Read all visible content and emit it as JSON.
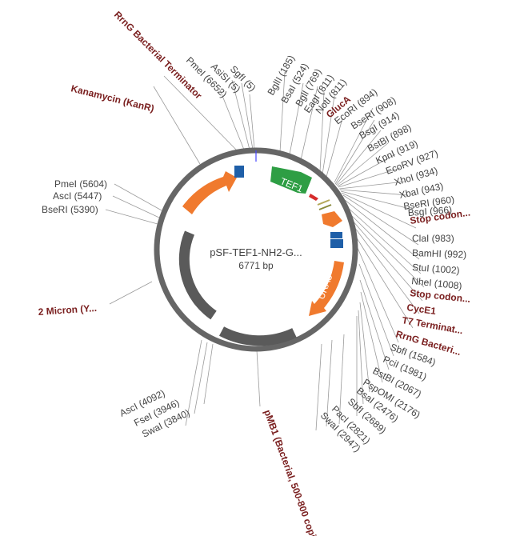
{
  "plasmid": {
    "name": "pSF-TEF1-NH2-G...",
    "size": "6771 bp"
  },
  "sites": [
    {
      "id": "site-pmei-6652",
      "label": "PmeI (6652)"
    },
    {
      "id": "site-asisi-5",
      "label": "AsiSI (5)"
    },
    {
      "id": "site-sgfi-5",
      "label": "SgfI (5)"
    },
    {
      "id": "site-bglii-185",
      "label": "BglII (185)"
    },
    {
      "id": "site-bsai-524",
      "label": "BsaI (524)"
    },
    {
      "id": "site-bgli-769",
      "label": "BglI (769)"
    },
    {
      "id": "site-eagi-811",
      "label": "EagI (811)"
    },
    {
      "id": "site-noti-811",
      "label": "NotI (811)"
    },
    {
      "id": "site-ecori-894",
      "label": "EcoRI (894)"
    },
    {
      "id": "site-bseri-908",
      "label": "BseRI (908)"
    },
    {
      "id": "site-bsgi-914",
      "label": "BsgI (914)"
    },
    {
      "id": "site-bstbi-898",
      "label": "BstBI (898)"
    },
    {
      "id": "site-kpni-919",
      "label": "KpnI (919)"
    },
    {
      "id": "site-ecorv-927",
      "label": "EcoRV (927)"
    },
    {
      "id": "site-xhoi-934",
      "label": "XhoI (934)"
    },
    {
      "id": "site-xbai-943",
      "label": "XbaI (943)"
    },
    {
      "id": "site-bseri-960",
      "label": "BseRI (960)"
    },
    {
      "id": "site-bsgi-966",
      "label": "BsgI (966)"
    },
    {
      "id": "site-clai-983",
      "label": "ClaI (983)"
    },
    {
      "id": "site-bamhi-992",
      "label": "BamHI (992)"
    },
    {
      "id": "site-stui-1002",
      "label": "StuI (1002)"
    },
    {
      "id": "site-nhei-1008",
      "label": "NheI (1008)"
    },
    {
      "id": "site-sbfi-1584",
      "label": "SbfI (1584)"
    },
    {
      "id": "site-pcii-1981",
      "label": "PciI (1981)"
    },
    {
      "id": "site-bstbi-2067",
      "label": "BstBI (2067)"
    },
    {
      "id": "site-pspomi-2176",
      "label": "PspOMI (2176)"
    },
    {
      "id": "site-bsai-2476",
      "label": "BsaI (2476)"
    },
    {
      "id": "site-sbfi-2689",
      "label": "SbfI (2689)"
    },
    {
      "id": "site-paci-2821",
      "label": "PacI (2821)"
    },
    {
      "id": "site-swai-2947",
      "label": "SwaI (2947)"
    },
    {
      "id": "site-swai-3840",
      "label": "SwaI (3840)"
    },
    {
      "id": "site-fsei-3946",
      "label": "FseI (3946)"
    },
    {
      "id": "site-asci-4092",
      "label": "AscI (4092)"
    },
    {
      "id": "site-bseri-5390",
      "label": "BseRI (5390)"
    },
    {
      "id": "site-asci-5447",
      "label": "AscI (5447)"
    },
    {
      "id": "site-pmei-5604",
      "label": "PmeI (5604)"
    }
  ],
  "features": [
    {
      "id": "feature-rrng-terminator-top",
      "label": "RrnG Bacterial Terminator"
    },
    {
      "id": "feature-kanamycin",
      "label": "Kanamycin (KanR)"
    },
    {
      "id": "feature-gluca",
      "label": "GlucA"
    },
    {
      "id": "feature-stop-codon-1",
      "label": "Stop codon..."
    },
    {
      "id": "feature-stop-codon-2",
      "label": "Stop codon..."
    },
    {
      "id": "feature-cyce1",
      "label": "CycE1"
    },
    {
      "id": "feature-t7-terminator",
      "label": "T7 Terminat..."
    },
    {
      "id": "feature-rrng-bacterial-right",
      "label": "RrnG Bacteri..."
    },
    {
      "id": "feature-2-micron",
      "label": "2 Micron (Y..."
    },
    {
      "id": "feature-pmb1",
      "label": "pMB1 (Bacterial, 500-800 copies)"
    }
  ],
  "inner_labels": {
    "tef1": "TEF1",
    "ura3": "URA3"
  },
  "colors": {
    "backbone": "#666666",
    "dark_feature": "#5a5a5a",
    "orange": "#f07a2e",
    "green": "#2e9e44",
    "blue": "#1f5fa8",
    "red": "#d62b2b",
    "feature_text": "#7a1f1f",
    "site_text": "#444444"
  }
}
